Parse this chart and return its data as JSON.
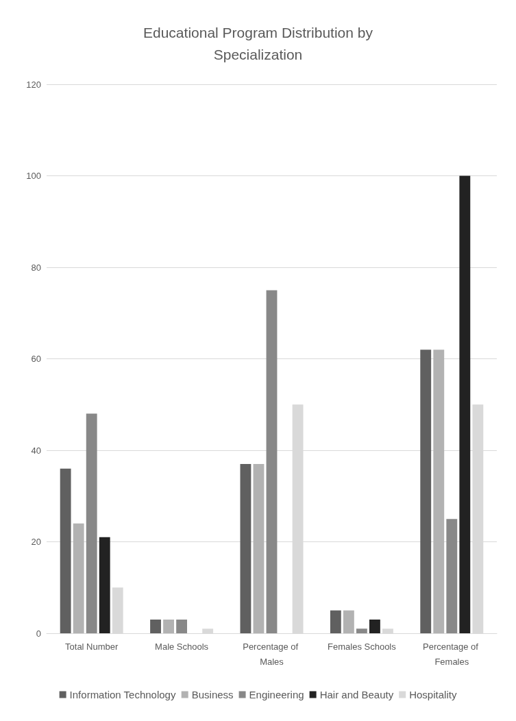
{
  "chart_data": {
    "type": "bar",
    "title": "Educational Program Distribution by\nSpecialization",
    "categories": [
      "Total Number",
      "Male Schools",
      "Percentage of Males",
      "Females Schools",
      "Percentage of Females"
    ],
    "series": [
      {
        "name": "Information Technology",
        "color": "#606060",
        "values": [
          36,
          3,
          37,
          5,
          62
        ]
      },
      {
        "name": "Business",
        "color": "#b2b2b2",
        "values": [
          24,
          3,
          37,
          5,
          62
        ]
      },
      {
        "name": "Engineering",
        "color": "#888888",
        "values": [
          48,
          3,
          75,
          1,
          25
        ]
      },
      {
        "name": "Hair and Beauty",
        "color": "#222222",
        "values": [
          21,
          0,
          0,
          3,
          100
        ]
      },
      {
        "name": "Hospitality",
        "color": "#d9d9d9",
        "values": [
          10,
          1,
          50,
          1,
          50
        ]
      }
    ],
    "ylim": [
      0,
      120
    ],
    "yticks": [
      0,
      20,
      40,
      60,
      80,
      100,
      120
    ],
    "grid": "y",
    "legend": "bottom"
  }
}
